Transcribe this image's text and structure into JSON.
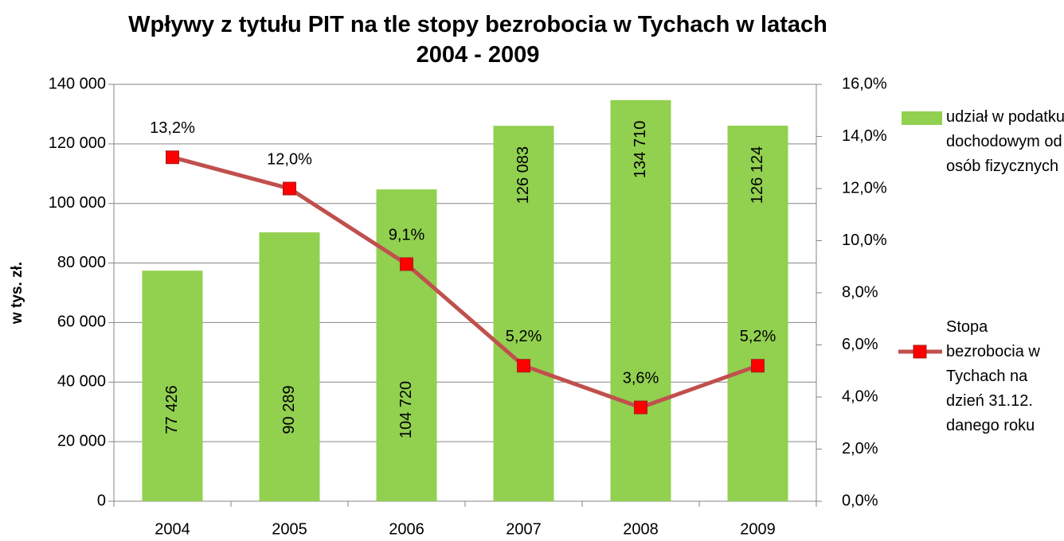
{
  "chart_data": {
    "type": "bar-line",
    "title": "Wpływy z tytułu PIT na tle stopy bezrobocia w Tychach w latach 2004 - 2009",
    "y_label": "w tys. zł.",
    "categories": [
      "2004",
      "2005",
      "2006",
      "2007",
      "2008",
      "2009"
    ],
    "series": [
      {
        "name": "udział w podatku dochodowym od osób fizycznych",
        "type": "bar",
        "color": "#92d050",
        "values": [
          77426,
          90289,
          104720,
          126083,
          134710,
          126124
        ],
        "value_labels": [
          "77 426",
          "90 289",
          "104 720",
          "126 083",
          "134 710",
          "126 124"
        ]
      },
      {
        "name": "Stopa bezrobocia w Tychach na dzień 31.12. danego roku",
        "type": "line",
        "axis": "y2",
        "color": "#c0504d",
        "marker_color": "#ff0000",
        "values": [
          13.2,
          12.0,
          9.1,
          5.2,
          3.6,
          5.2
        ],
        "value_labels": [
          "13,2%",
          "12,0%",
          "9,1%",
          "5,2%",
          "3,6%",
          "5,2%"
        ]
      }
    ],
    "ylim": [
      0,
      140000
    ],
    "yticks": [
      0,
      {
        "value": 20000,
        "label": "20 000"
      },
      {
        "value": 40000,
        "label": "40 000"
      },
      {
        "value": 60000,
        "label": "60 000"
      },
      {
        "value": 80000,
        "label": "80 000"
      },
      {
        "value": 100000,
        "label": "100 000"
      },
      {
        "value": 120000,
        "label": "120 000"
      },
      {
        "value": 140000,
        "label": "140 000"
      }
    ],
    "y2lim": [
      0,
      16
    ],
    "y2ticks": [
      {
        "value": 0,
        "label": "0,0%"
      },
      {
        "value": 2,
        "label": "2,0%"
      },
      {
        "value": 4,
        "label": "4,0%"
      },
      {
        "value": 6,
        "label": "6,0%"
      },
      {
        "value": 8,
        "label": "8,0%"
      },
      {
        "value": 10,
        "label": "10,0%"
      },
      {
        "value": 12,
        "label": "12,0%"
      },
      {
        "value": 14,
        "label": "14,0%"
      },
      {
        "value": 16,
        "label": "16,0%"
      }
    ],
    "grid": true,
    "legend": "right"
  }
}
